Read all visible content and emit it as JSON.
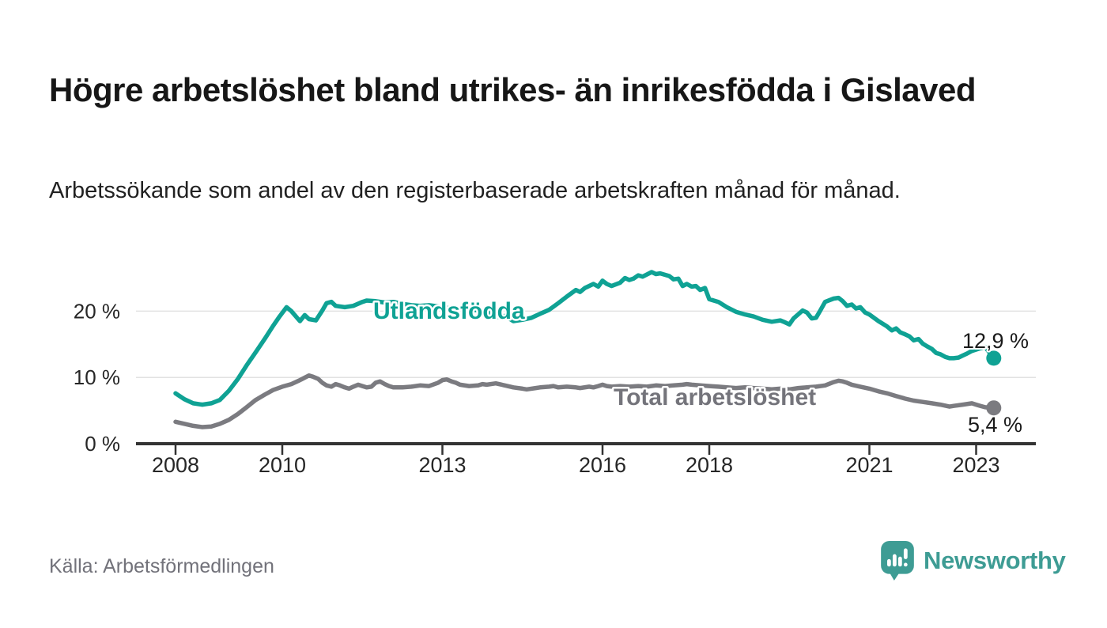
{
  "header": {
    "title": "Högre arbetslöshet bland utrikes- än inrikesfödda i Gislaved",
    "subtitle": "Arbetssökande som andel av den registerbaserade arbetskraften månad för månad."
  },
  "footer": {
    "source": "Källa: Arbetsförmedlingen",
    "brand": "Newsworthy",
    "brand_color": "#3e9c94",
    "logo_icon": "newsworthy-speech-bubble-bar-chart-icon"
  },
  "chart_data": {
    "type": "line",
    "title": "Högre arbetslöshet bland utrikes- än inrikesfödda i Gislaved",
    "subtitle": "Arbetssökande som andel av den registerbaserade arbetskraften månad för månad.",
    "xlabel": "",
    "ylabel": "",
    "unit": "%",
    "grid": "horizontal",
    "legend_position": "inline-labels",
    "xlim": [
      2007.7,
      2023.9
    ],
    "ylim": [
      0,
      27
    ],
    "axis_color": "#333333",
    "gridline_color": "#e2e2e2",
    "y_ticks": [
      {
        "value": 0,
        "label": "0 %"
      },
      {
        "value": 10,
        "label": "10 %"
      },
      {
        "value": 20,
        "label": "20 %"
      }
    ],
    "x_ticks": [
      {
        "value": 2008,
        "label": "2008"
      },
      {
        "value": 2010,
        "label": "2010"
      },
      {
        "value": 2013,
        "label": "2013"
      },
      {
        "value": 2016,
        "label": "2016"
      },
      {
        "value": 2018,
        "label": "2018"
      },
      {
        "value": 2021,
        "label": "2021"
      },
      {
        "value": 2023,
        "label": "2023"
      }
    ],
    "series": [
      {
        "id": "utlandsfodda",
        "name": "Utlandsfödda",
        "color": "#0fa294",
        "end_label": "12,9 %",
        "end_value": 12.9,
        "points": [
          [
            2008.0,
            7.6
          ],
          [
            2008.17,
            6.7
          ],
          [
            2008.33,
            6.1
          ],
          [
            2008.5,
            5.9
          ],
          [
            2008.67,
            6.1
          ],
          [
            2008.83,
            6.6
          ],
          [
            2009.0,
            8.0
          ],
          [
            2009.17,
            9.8
          ],
          [
            2009.33,
            11.8
          ],
          [
            2009.5,
            13.8
          ],
          [
            2009.67,
            15.8
          ],
          [
            2009.83,
            17.8
          ],
          [
            2009.95,
            19.2
          ],
          [
            2010.08,
            20.6
          ],
          [
            2010.17,
            20.0
          ],
          [
            2010.33,
            18.5
          ],
          [
            2010.42,
            19.4
          ],
          [
            2010.5,
            18.8
          ],
          [
            2010.63,
            18.6
          ],
          [
            2010.75,
            20.1
          ],
          [
            2010.83,
            21.2
          ],
          [
            2010.92,
            21.4
          ],
          [
            2011.0,
            20.8
          ],
          [
            2011.17,
            20.6
          ],
          [
            2011.33,
            20.8
          ],
          [
            2011.5,
            21.4
          ],
          [
            2011.58,
            21.6
          ],
          [
            2011.75,
            21.5
          ],
          [
            2011.92,
            21.3
          ],
          [
            2012.08,
            21.4
          ],
          [
            2012.25,
            21.1
          ],
          [
            2012.42,
            20.9
          ],
          [
            2012.58,
            20.8
          ],
          [
            2012.75,
            20.9
          ],
          [
            2012.92,
            20.7
          ],
          [
            2013.08,
            20.5
          ],
          [
            2013.25,
            20.3
          ],
          [
            2013.42,
            20.4
          ],
          [
            2013.58,
            20.2
          ],
          [
            2013.75,
            20.0
          ],
          [
            2013.92,
            19.7
          ],
          [
            2014.0,
            19.3
          ],
          [
            2014.08,
            19.0
          ],
          [
            2014.17,
            19.3
          ],
          [
            2014.33,
            18.5
          ],
          [
            2014.5,
            18.7
          ],
          [
            2014.67,
            19.0
          ],
          [
            2014.83,
            19.6
          ],
          [
            2015.0,
            20.2
          ],
          [
            2015.17,
            21.2
          ],
          [
            2015.33,
            22.2
          ],
          [
            2015.5,
            23.2
          ],
          [
            2015.58,
            22.9
          ],
          [
            2015.67,
            23.5
          ],
          [
            2015.83,
            24.1
          ],
          [
            2015.92,
            23.7
          ],
          [
            2016.0,
            24.6
          ],
          [
            2016.08,
            24.1
          ],
          [
            2016.17,
            23.8
          ],
          [
            2016.33,
            24.3
          ],
          [
            2016.42,
            25.0
          ],
          [
            2016.5,
            24.7
          ],
          [
            2016.58,
            24.9
          ],
          [
            2016.67,
            25.4
          ],
          [
            2016.75,
            25.2
          ],
          [
            2016.92,
            25.9
          ],
          [
            2017.0,
            25.6
          ],
          [
            2017.08,
            25.7
          ],
          [
            2017.25,
            25.3
          ],
          [
            2017.33,
            24.8
          ],
          [
            2017.42,
            24.9
          ],
          [
            2017.5,
            23.8
          ],
          [
            2017.58,
            24.1
          ],
          [
            2017.67,
            23.7
          ],
          [
            2017.75,
            23.8
          ],
          [
            2017.83,
            23.2
          ],
          [
            2017.92,
            23.5
          ],
          [
            2018.0,
            21.8
          ],
          [
            2018.17,
            21.4
          ],
          [
            2018.33,
            20.6
          ],
          [
            2018.5,
            19.9
          ],
          [
            2018.67,
            19.5
          ],
          [
            2018.83,
            19.2
          ],
          [
            2019.0,
            18.7
          ],
          [
            2019.17,
            18.4
          ],
          [
            2019.33,
            18.6
          ],
          [
            2019.42,
            18.3
          ],
          [
            2019.5,
            18.0
          ],
          [
            2019.58,
            18.9
          ],
          [
            2019.75,
            20.1
          ],
          [
            2019.83,
            19.8
          ],
          [
            2019.92,
            18.9
          ],
          [
            2020.0,
            19.0
          ],
          [
            2020.08,
            20.1
          ],
          [
            2020.17,
            21.4
          ],
          [
            2020.33,
            21.9
          ],
          [
            2020.42,
            22.0
          ],
          [
            2020.5,
            21.5
          ],
          [
            2020.58,
            20.8
          ],
          [
            2020.67,
            21.0
          ],
          [
            2020.75,
            20.4
          ],
          [
            2020.83,
            20.6
          ],
          [
            2020.92,
            19.8
          ],
          [
            2021.0,
            19.5
          ],
          [
            2021.17,
            18.5
          ],
          [
            2021.33,
            17.7
          ],
          [
            2021.42,
            17.1
          ],
          [
            2021.5,
            17.4
          ],
          [
            2021.58,
            16.8
          ],
          [
            2021.67,
            16.5
          ],
          [
            2021.75,
            16.2
          ],
          [
            2021.83,
            15.6
          ],
          [
            2021.92,
            15.8
          ],
          [
            2022.0,
            15.1
          ],
          [
            2022.08,
            14.7
          ],
          [
            2022.17,
            14.3
          ],
          [
            2022.25,
            13.7
          ],
          [
            2022.33,
            13.5
          ],
          [
            2022.42,
            13.1
          ],
          [
            2022.5,
            12.9
          ],
          [
            2022.58,
            12.9
          ],
          [
            2022.67,
            13.0
          ],
          [
            2022.75,
            13.3
          ],
          [
            2022.83,
            13.6
          ],
          [
            2022.92,
            14.0
          ],
          [
            2023.08,
            14.4
          ],
          [
            2023.17,
            14.6
          ],
          [
            2023.33,
            12.9
          ]
        ]
      },
      {
        "id": "total",
        "name": "Total arbetslöshet",
        "color": "#7b7b80",
        "label_color": "#74747b",
        "end_label": "5,4 %",
        "end_value": 5.4,
        "points": [
          [
            2008.0,
            3.3
          ],
          [
            2008.17,
            3.0
          ],
          [
            2008.33,
            2.7
          ],
          [
            2008.5,
            2.5
          ],
          [
            2008.67,
            2.6
          ],
          [
            2008.83,
            3.0
          ],
          [
            2009.0,
            3.6
          ],
          [
            2009.17,
            4.5
          ],
          [
            2009.33,
            5.5
          ],
          [
            2009.5,
            6.6
          ],
          [
            2009.67,
            7.4
          ],
          [
            2009.83,
            8.1
          ],
          [
            2010.0,
            8.6
          ],
          [
            2010.17,
            9.0
          ],
          [
            2010.33,
            9.6
          ],
          [
            2010.5,
            10.3
          ],
          [
            2010.58,
            10.1
          ],
          [
            2010.67,
            9.8
          ],
          [
            2010.75,
            9.2
          ],
          [
            2010.83,
            8.8
          ],
          [
            2010.92,
            8.6
          ],
          [
            2011.0,
            9.0
          ],
          [
            2011.08,
            8.8
          ],
          [
            2011.17,
            8.5
          ],
          [
            2011.25,
            8.3
          ],
          [
            2011.33,
            8.6
          ],
          [
            2011.42,
            8.9
          ],
          [
            2011.5,
            8.7
          ],
          [
            2011.58,
            8.5
          ],
          [
            2011.67,
            8.6
          ],
          [
            2011.75,
            9.2
          ],
          [
            2011.83,
            9.4
          ],
          [
            2011.92,
            9.0
          ],
          [
            2012.0,
            8.7
          ],
          [
            2012.08,
            8.5
          ],
          [
            2012.25,
            8.5
          ],
          [
            2012.42,
            8.6
          ],
          [
            2012.58,
            8.8
          ],
          [
            2012.75,
            8.7
          ],
          [
            2012.92,
            9.2
          ],
          [
            2013.0,
            9.6
          ],
          [
            2013.08,
            9.7
          ],
          [
            2013.17,
            9.4
          ],
          [
            2013.25,
            9.2
          ],
          [
            2013.33,
            8.9
          ],
          [
            2013.5,
            8.7
          ],
          [
            2013.67,
            8.8
          ],
          [
            2013.75,
            9.0
          ],
          [
            2013.83,
            8.9
          ],
          [
            2014.0,
            9.1
          ],
          [
            2014.17,
            8.8
          ],
          [
            2014.33,
            8.5
          ],
          [
            2014.5,
            8.3
          ],
          [
            2014.58,
            8.2
          ],
          [
            2014.75,
            8.4
          ],
          [
            2014.83,
            8.5
          ],
          [
            2015.0,
            8.6
          ],
          [
            2015.08,
            8.7
          ],
          [
            2015.17,
            8.5
          ],
          [
            2015.33,
            8.6
          ],
          [
            2015.5,
            8.5
          ],
          [
            2015.58,
            8.4
          ],
          [
            2015.75,
            8.6
          ],
          [
            2015.83,
            8.5
          ],
          [
            2015.92,
            8.7
          ],
          [
            2016.0,
            8.9
          ],
          [
            2016.08,
            8.7
          ],
          [
            2016.17,
            8.6
          ],
          [
            2016.33,
            8.7
          ],
          [
            2016.5,
            8.6
          ],
          [
            2016.67,
            8.7
          ],
          [
            2016.83,
            8.6
          ],
          [
            2017.0,
            8.8
          ],
          [
            2017.17,
            8.7
          ],
          [
            2017.33,
            8.8
          ],
          [
            2017.5,
            8.9
          ],
          [
            2017.58,
            9.0
          ],
          [
            2017.67,
            8.9
          ],
          [
            2017.83,
            8.8
          ],
          [
            2018.0,
            8.7
          ],
          [
            2018.17,
            8.6
          ],
          [
            2018.33,
            8.5
          ],
          [
            2018.5,
            8.4
          ],
          [
            2018.67,
            8.5
          ],
          [
            2018.83,
            8.4
          ],
          [
            2019.0,
            8.3
          ],
          [
            2019.17,
            8.2
          ],
          [
            2019.33,
            8.3
          ],
          [
            2019.5,
            8.2
          ],
          [
            2019.67,
            8.4
          ],
          [
            2019.83,
            8.5
          ],
          [
            2020.0,
            8.6
          ],
          [
            2020.17,
            8.8
          ],
          [
            2020.33,
            9.3
          ],
          [
            2020.42,
            9.5
          ],
          [
            2020.5,
            9.4
          ],
          [
            2020.58,
            9.2
          ],
          [
            2020.67,
            8.9
          ],
          [
            2020.83,
            8.6
          ],
          [
            2021.0,
            8.3
          ],
          [
            2021.17,
            7.9
          ],
          [
            2021.33,
            7.6
          ],
          [
            2021.5,
            7.2
          ],
          [
            2021.67,
            6.8
          ],
          [
            2021.83,
            6.5
          ],
          [
            2022.0,
            6.3
          ],
          [
            2022.17,
            6.1
          ],
          [
            2022.33,
            5.9
          ],
          [
            2022.5,
            5.6
          ],
          [
            2022.58,
            5.7
          ],
          [
            2022.75,
            5.9
          ],
          [
            2022.92,
            6.1
          ],
          [
            2023.0,
            5.9
          ],
          [
            2023.08,
            5.7
          ],
          [
            2023.17,
            5.5
          ],
          [
            2023.33,
            5.4
          ]
        ]
      }
    ]
  }
}
